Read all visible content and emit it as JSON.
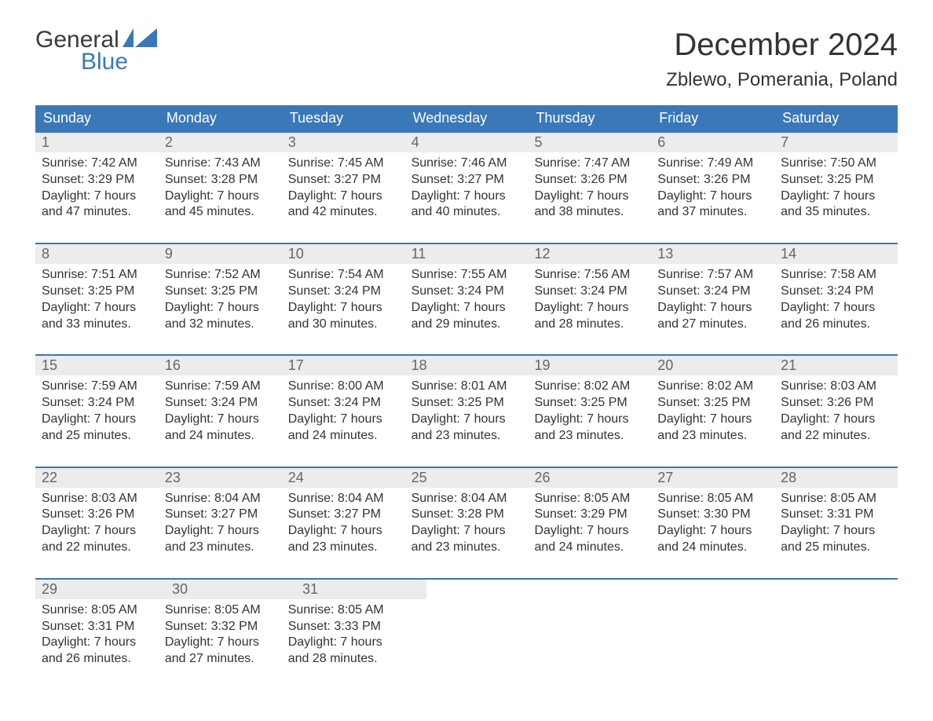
{
  "logo": {
    "word1": "General",
    "word2": "Blue"
  },
  "title": "December 2024",
  "location": "Zblewo, Pomerania, Poland",
  "colors": {
    "header_bg": "#3a78b8",
    "header_text": "#ffffff",
    "daynum_bg": "#ececec",
    "daynum_text": "#666666",
    "border_top": "#3a78b8",
    "body_text": "#333333",
    "logo_word1": "#3a3a3a",
    "logo_word2": "#3a78b8",
    "background": "#ffffff"
  },
  "day_headers": [
    "Sunday",
    "Monday",
    "Tuesday",
    "Wednesday",
    "Thursday",
    "Friday",
    "Saturday"
  ],
  "weeks": [
    [
      {
        "n": "1",
        "sr": "7:42 AM",
        "ss": "3:29 PM",
        "dl": "7 hours and 47 minutes."
      },
      {
        "n": "2",
        "sr": "7:43 AM",
        "ss": "3:28 PM",
        "dl": "7 hours and 45 minutes."
      },
      {
        "n": "3",
        "sr": "7:45 AM",
        "ss": "3:27 PM",
        "dl": "7 hours and 42 minutes."
      },
      {
        "n": "4",
        "sr": "7:46 AM",
        "ss": "3:27 PM",
        "dl": "7 hours and 40 minutes."
      },
      {
        "n": "5",
        "sr": "7:47 AM",
        "ss": "3:26 PM",
        "dl": "7 hours and 38 minutes."
      },
      {
        "n": "6",
        "sr": "7:49 AM",
        "ss": "3:26 PM",
        "dl": "7 hours and 37 minutes."
      },
      {
        "n": "7",
        "sr": "7:50 AM",
        "ss": "3:25 PM",
        "dl": "7 hours and 35 minutes."
      }
    ],
    [
      {
        "n": "8",
        "sr": "7:51 AM",
        "ss": "3:25 PM",
        "dl": "7 hours and 33 minutes."
      },
      {
        "n": "9",
        "sr": "7:52 AM",
        "ss": "3:25 PM",
        "dl": "7 hours and 32 minutes."
      },
      {
        "n": "10",
        "sr": "7:54 AM",
        "ss": "3:24 PM",
        "dl": "7 hours and 30 minutes."
      },
      {
        "n": "11",
        "sr": "7:55 AM",
        "ss": "3:24 PM",
        "dl": "7 hours and 29 minutes."
      },
      {
        "n": "12",
        "sr": "7:56 AM",
        "ss": "3:24 PM",
        "dl": "7 hours and 28 minutes."
      },
      {
        "n": "13",
        "sr": "7:57 AM",
        "ss": "3:24 PM",
        "dl": "7 hours and 27 minutes."
      },
      {
        "n": "14",
        "sr": "7:58 AM",
        "ss": "3:24 PM",
        "dl": "7 hours and 26 minutes."
      }
    ],
    [
      {
        "n": "15",
        "sr": "7:59 AM",
        "ss": "3:24 PM",
        "dl": "7 hours and 25 minutes."
      },
      {
        "n": "16",
        "sr": "7:59 AM",
        "ss": "3:24 PM",
        "dl": "7 hours and 24 minutes."
      },
      {
        "n": "17",
        "sr": "8:00 AM",
        "ss": "3:24 PM",
        "dl": "7 hours and 24 minutes."
      },
      {
        "n": "18",
        "sr": "8:01 AM",
        "ss": "3:25 PM",
        "dl": "7 hours and 23 minutes."
      },
      {
        "n": "19",
        "sr": "8:02 AM",
        "ss": "3:25 PM",
        "dl": "7 hours and 23 minutes."
      },
      {
        "n": "20",
        "sr": "8:02 AM",
        "ss": "3:25 PM",
        "dl": "7 hours and 23 minutes."
      },
      {
        "n": "21",
        "sr": "8:03 AM",
        "ss": "3:26 PM",
        "dl": "7 hours and 22 minutes."
      }
    ],
    [
      {
        "n": "22",
        "sr": "8:03 AM",
        "ss": "3:26 PM",
        "dl": "7 hours and 22 minutes."
      },
      {
        "n": "23",
        "sr": "8:04 AM",
        "ss": "3:27 PM",
        "dl": "7 hours and 23 minutes."
      },
      {
        "n": "24",
        "sr": "8:04 AM",
        "ss": "3:27 PM",
        "dl": "7 hours and 23 minutes."
      },
      {
        "n": "25",
        "sr": "8:04 AM",
        "ss": "3:28 PM",
        "dl": "7 hours and 23 minutes."
      },
      {
        "n": "26",
        "sr": "8:05 AM",
        "ss": "3:29 PM",
        "dl": "7 hours and 24 minutes."
      },
      {
        "n": "27",
        "sr": "8:05 AM",
        "ss": "3:30 PM",
        "dl": "7 hours and 24 minutes."
      },
      {
        "n": "28",
        "sr": "8:05 AM",
        "ss": "3:31 PM",
        "dl": "7 hours and 25 minutes."
      }
    ],
    [
      {
        "n": "29",
        "sr": "8:05 AM",
        "ss": "3:31 PM",
        "dl": "7 hours and 26 minutes."
      },
      {
        "n": "30",
        "sr": "8:05 AM",
        "ss": "3:32 PM",
        "dl": "7 hours and 27 minutes."
      },
      {
        "n": "31",
        "sr": "8:05 AM",
        "ss": "3:33 PM",
        "dl": "7 hours and 28 minutes."
      },
      null,
      null,
      null,
      null
    ]
  ],
  "labels": {
    "sunrise_prefix": "Sunrise: ",
    "sunset_prefix": "Sunset: ",
    "daylight_prefix": "Daylight: "
  }
}
